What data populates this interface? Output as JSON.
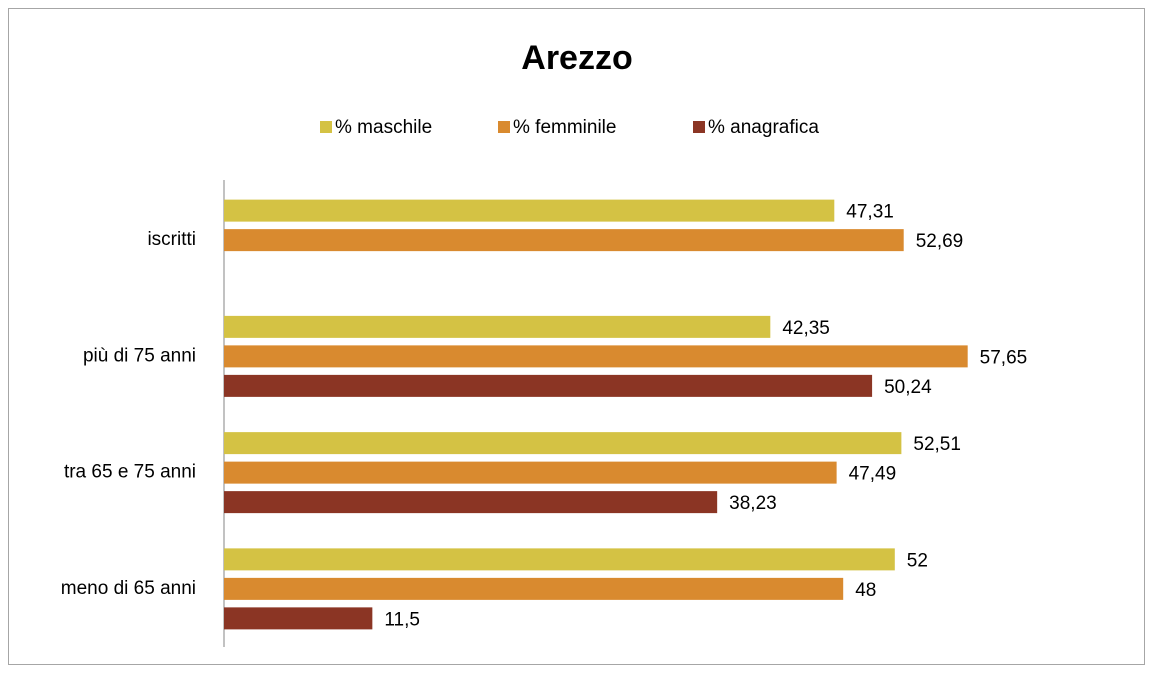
{
  "chart_data": {
    "type": "bar",
    "orientation": "horizontal",
    "title": "Arezzo",
    "categories": [
      "iscritti",
      "più di 75 anni",
      "tra 65 e 75 anni",
      "meno di 65 anni"
    ],
    "series": [
      {
        "name": "% maschile",
        "color": "#d4c244",
        "values": [
          47.31,
          42.35,
          52.51,
          52
        ],
        "value_labels": [
          "47,31",
          "42,35",
          "52,51",
          "52"
        ]
      },
      {
        "name": "% femminile",
        "color": "#d98a2f",
        "values": [
          52.69,
          57.65,
          47.49,
          48
        ],
        "value_labels": [
          "52,69",
          "57,65",
          "47,49",
          "48"
        ]
      },
      {
        "name": "% anagrafica",
        "color": "#8b3524",
        "values": [
          null,
          50.24,
          38.23,
          11.5
        ],
        "value_labels": [
          null,
          "50,24",
          "38,23",
          "11,5"
        ]
      }
    ],
    "xlim": [
      0,
      70
    ],
    "legend": "top"
  }
}
